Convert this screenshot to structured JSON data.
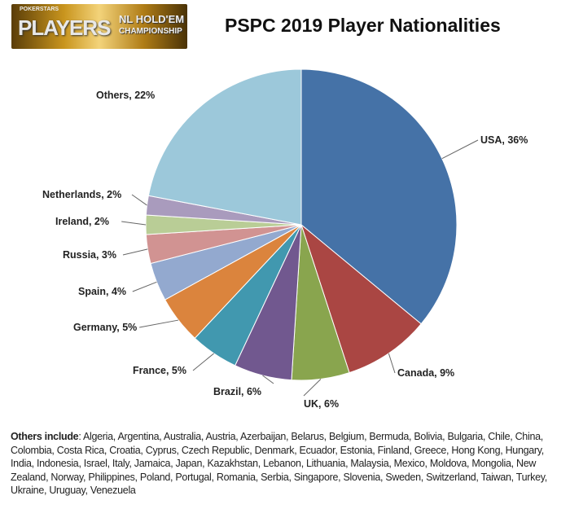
{
  "logo": {
    "brand_small": "POKERSTARS",
    "brand_big": "PLAYERS",
    "line1": "NL HOLD'EM",
    "line2": "CHAMPIONSHIP"
  },
  "chart_data": {
    "type": "pie",
    "title": "PSPC 2019 Player Nationalities",
    "unit": "%",
    "start": "top, clockwise",
    "slices": [
      {
        "label": "USA",
        "value": 36,
        "display": "USA, 36%",
        "color": "#4572A7"
      },
      {
        "label": "Canada",
        "value": 9,
        "display": "Canada, 9%",
        "color": "#AA4643"
      },
      {
        "label": "UK",
        "value": 6,
        "display": "UK, 6%",
        "color": "#89A54E"
      },
      {
        "label": "Brazil",
        "value": 6,
        "display": "Brazil, 6%",
        "color": "#71588F"
      },
      {
        "label": "France",
        "value": 5,
        "display": "France, 5%",
        "color": "#4198AF"
      },
      {
        "label": "Germany",
        "value": 5,
        "display": "Germany, 5%",
        "color": "#DB843D"
      },
      {
        "label": "Spain",
        "value": 4,
        "display": "Spain, 4%",
        "color": "#93A9CF"
      },
      {
        "label": "Russia",
        "value": 3,
        "display": "Russia, 3%",
        "color": "#D19392"
      },
      {
        "label": "Ireland",
        "value": 2,
        "display": "Ireland, 2%",
        "color": "#B9CD96"
      },
      {
        "label": "Netherlands",
        "value": 2,
        "display": "Netherlands, 2%",
        "color": "#A99BBD"
      },
      {
        "label": "Others",
        "value": 22,
        "display": "Others, 22%",
        "color": "#9CC8DA"
      }
    ]
  },
  "footnote": {
    "label": "Others include",
    "text": ": Algeria, Argentina, Australia, Austria, Azerbaijan, Belarus, Belgium, Bermuda, Bolivia, Bulgaria, Chile, China, Colombia, Costa Rica, Croatia, Cyprus, Czech Republic, Denmark, Ecuador, Estonia, Finland, Greece, Hong Kong, Hungary, India, Indonesia, Israel, Italy, Jamaica, Japan, Kazakhstan, Lebanon, Lithuania, Malaysia, Mexico, Moldova, Mongolia, New Zealand, Norway, Philippines, Poland, Portugal, Romania, Serbia, Singapore, Slovenia, Sweden, Switzerland, Taiwan, Turkey, Ukraine, Uruguay, Venezuela"
  }
}
